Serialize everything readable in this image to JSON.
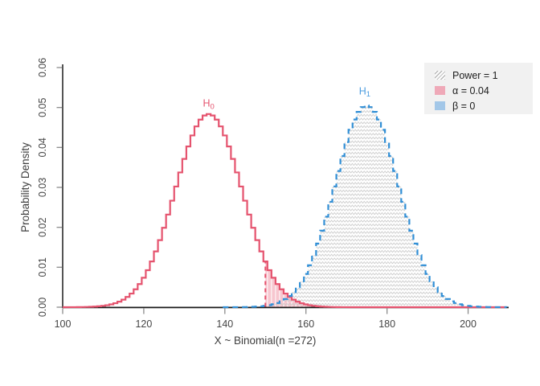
{
  "chart_data": {
    "type": "area",
    "subtype": "step-density-curves",
    "title": "",
    "xlabel": "X ~ Binomial(n =272)",
    "ylabel": "Probability Density",
    "n": 272,
    "xlim": [
      100,
      210
    ],
    "ylim": [
      0,
      0.06
    ],
    "xticks": [
      100,
      120,
      140,
      160,
      180,
      200
    ],
    "ytick_labels": [
      "0.00",
      "0.01",
      "0.02",
      "0.03",
      "0.04",
      "0.05",
      "0.06"
    ],
    "grid": false,
    "legend_position": "top-right",
    "critical_value": 150,
    "series": [
      {
        "name": "H0",
        "label": "H",
        "label_sub": "0",
        "mean": 136,
        "sd": 8.25,
        "peak_density": 0.0484,
        "color": "#e5536e",
        "style": "solid-step",
        "label_x": 136,
        "label_density": 0.0502
      },
      {
        "name": "H1",
        "label": "H",
        "label_sub": "1",
        "mean": 175,
        "sd": 7.9,
        "peak_density": 0.0505,
        "color": "#318fd6",
        "label_color": "#4a9cdf",
        "style": "dashed-step",
        "label_x": 174.5,
        "label_density": 0.0533
      }
    ],
    "regions": [
      {
        "name": "power",
        "label": "Power = 1",
        "under": "H1",
        "from": 150,
        "to": 209.5,
        "style": "hatch",
        "hatch_color": "#c5c5c5"
      },
      {
        "name": "alpha",
        "label": "α = 0.04",
        "under": "H0",
        "from": 150,
        "to": 168,
        "style": "bars",
        "color": "#f7c6cf"
      },
      {
        "name": "beta",
        "label": "β = 0",
        "under": "H1",
        "from": 139.5,
        "to": 150,
        "style": "solid",
        "color": "#a3c7e8"
      }
    ],
    "legend": {
      "background": "#f1f1f1",
      "items": [
        {
          "swatch": "hatch",
          "label": "Power = 1"
        },
        {
          "swatch": "#efa9b8",
          "label": "α = 0.04"
        },
        {
          "swatch": "#a3c7e8",
          "label": "β = 0"
        }
      ]
    },
    "colors": {
      "h0_line": "#e5536e",
      "h1_line": "#318fd6",
      "alpha_fill": "#f7c6cf",
      "beta_fill": "#a3c7e8",
      "hatch": "#c5c5c5",
      "axis": "#1a1a1a",
      "tick": "#8c8c8c",
      "text": "#454545"
    }
  }
}
